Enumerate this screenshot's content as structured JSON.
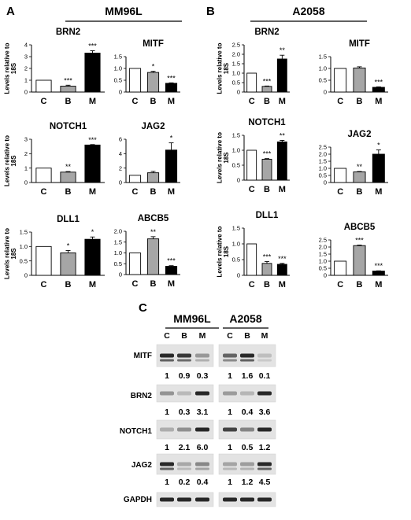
{
  "panels": {
    "A": {
      "letter": "A",
      "title": "MM96L"
    },
    "B": {
      "letter": "B",
      "title": "A2058"
    },
    "C": {
      "letter": "C"
    }
  },
  "y_axis_label": [
    "Levels relative to",
    "18S"
  ],
  "bar_colors": {
    "C": "#ffffff",
    "B": "#a6a6a6",
    "M": "#000000"
  },
  "chart_data": [
    {
      "id": "A-BRN2",
      "panel": "A",
      "type": "bar",
      "title": "BRN2",
      "categories": [
        "C",
        "B",
        "M"
      ],
      "values": [
        1.0,
        0.5,
        3.3
      ],
      "errors": [
        0,
        0.08,
        0.2
      ],
      "stars": [
        "",
        "***",
        "***"
      ],
      "ylim": [
        0,
        4
      ],
      "yticks": [
        0,
        1,
        2,
        3,
        4
      ],
      "ytick_labels": [
        "0",
        "1",
        "2",
        "3",
        "4"
      ]
    },
    {
      "id": "A-MITF",
      "panel": "A",
      "type": "bar",
      "title": "MITF",
      "categories": [
        "C",
        "B",
        "M"
      ],
      "values": [
        1.0,
        0.83,
        0.37
      ],
      "errors": [
        0,
        0.05,
        0.02
      ],
      "stars": [
        "",
        "*",
        "***"
      ],
      "ylim": [
        0,
        1.5
      ],
      "yticks": [
        0,
        0.5,
        1.0,
        1.5
      ],
      "ytick_labels": [
        "0",
        "0.5",
        "1.0",
        "1.5"
      ]
    },
    {
      "id": "A-NOTCH1",
      "panel": "A",
      "type": "bar",
      "title": "NOTCH1",
      "categories": [
        "C",
        "B",
        "M"
      ],
      "values": [
        1.0,
        0.72,
        2.6
      ],
      "errors": [
        0,
        0.04,
        0.03
      ],
      "stars": [
        "",
        "**",
        "***"
      ],
      "ylim": [
        0,
        3
      ],
      "yticks": [
        0,
        1,
        2,
        3
      ],
      "ytick_labels": [
        "0",
        "1",
        "2",
        "3"
      ]
    },
    {
      "id": "A-JAG2",
      "panel": "A",
      "type": "bar",
      "title": "JAG2",
      "categories": [
        "C",
        "B",
        "M"
      ],
      "values": [
        1.0,
        1.35,
        4.5
      ],
      "errors": [
        0,
        0.2,
        1.0
      ],
      "stars": [
        "",
        "",
        "*"
      ],
      "ylim": [
        0,
        6
      ],
      "yticks": [
        0,
        2,
        4,
        6
      ],
      "ytick_labels": [
        "0",
        "2",
        "4",
        "6"
      ]
    },
    {
      "id": "A-DLL1",
      "panel": "A",
      "type": "bar",
      "title": "DLL1",
      "categories": [
        "C",
        "B",
        "M"
      ],
      "values": [
        1.0,
        0.78,
        1.25
      ],
      "errors": [
        0,
        0.08,
        0.08
      ],
      "stars": [
        "",
        "*",
        "*"
      ],
      "ylim": [
        0,
        1.5
      ],
      "yticks": [
        0,
        0.5,
        1.0,
        1.5
      ],
      "ytick_labels": [
        "0",
        "0.5",
        "1.0",
        "1.5"
      ]
    },
    {
      "id": "A-ABCB5",
      "panel": "A",
      "type": "bar",
      "title": "ABCB5",
      "categories": [
        "C",
        "B",
        "M"
      ],
      "values": [
        1.0,
        1.65,
        0.38
      ],
      "errors": [
        0,
        0.1,
        0.03
      ],
      "stars": [
        "",
        "**",
        "***"
      ],
      "ylim": [
        0,
        2.0
      ],
      "yticks": [
        0,
        0.5,
        1.0,
        1.5,
        2.0
      ],
      "ytick_labels": [
        "0",
        "0.5",
        "1.0",
        "1.5",
        "2.0"
      ]
    },
    {
      "id": "B-BRN2",
      "panel": "B",
      "type": "bar",
      "title": "BRN2",
      "categories": [
        "C",
        "B",
        "M"
      ],
      "values": [
        1.0,
        0.3,
        1.75
      ],
      "errors": [
        0,
        0.02,
        0.2
      ],
      "stars": [
        "",
        "***",
        "**"
      ],
      "ylim": [
        0,
        2.5
      ],
      "yticks": [
        0,
        0.5,
        1.0,
        1.5,
        2.0,
        2.5
      ],
      "ytick_labels": [
        "0",
        "0.5",
        "1.0",
        "1.5",
        "2.0",
        "2.5"
      ]
    },
    {
      "id": "B-MITF",
      "panel": "B",
      "type": "bar",
      "title": "MITF",
      "categories": [
        "C",
        "B",
        "M"
      ],
      "values": [
        1.0,
        1.02,
        0.2
      ],
      "errors": [
        0,
        0.05,
        0.02
      ],
      "stars": [
        "",
        "",
        "***"
      ],
      "ylim": [
        0,
        1.5
      ],
      "yticks": [
        0,
        0.5,
        1.0,
        1.5
      ],
      "ytick_labels": [
        "0",
        "0.5",
        "1.0",
        "1.5"
      ]
    },
    {
      "id": "B-NOTCH1",
      "panel": "B",
      "type": "bar",
      "title": "NOTCH1",
      "categories": [
        "C",
        "B",
        "M"
      ],
      "values": [
        1.0,
        0.7,
        1.28
      ],
      "errors": [
        0,
        0.02,
        0.05
      ],
      "stars": [
        "",
        "***",
        "**"
      ],
      "ylim": [
        0,
        1.5
      ],
      "yticks": [
        0,
        0.5,
        1.0,
        1.5
      ],
      "ytick_labels": [
        "0",
        "0.5",
        "1.0",
        "1.5"
      ]
    },
    {
      "id": "B-JAG2",
      "panel": "B",
      "type": "bar",
      "title": "JAG2",
      "categories": [
        "C",
        "B",
        "M"
      ],
      "values": [
        1.0,
        0.75,
        2.0
      ],
      "errors": [
        0,
        0.03,
        0.3
      ],
      "stars": [
        "",
        "**",
        "*"
      ],
      "ylim": [
        0,
        2.5
      ],
      "yticks": [
        0,
        0.5,
        1.0,
        1.5,
        2.0,
        2.5
      ],
      "ytick_labels": [
        "0",
        "0.5",
        "1.0",
        "1.5",
        "2.0",
        "2.5"
      ]
    },
    {
      "id": "B-DLL1",
      "panel": "B",
      "type": "bar",
      "title": "DLL1",
      "categories": [
        "C",
        "B",
        "M"
      ],
      "values": [
        1.0,
        0.38,
        0.35
      ],
      "errors": [
        0,
        0.06,
        0.03
      ],
      "stars": [
        "",
        "***",
        "***"
      ],
      "ylim": [
        0,
        1.5
      ],
      "yticks": [
        0,
        0.5,
        1.0,
        1.5
      ],
      "ytick_labels": [
        "0",
        "0.5",
        "1.0",
        "1.5"
      ]
    },
    {
      "id": "B-ABCB5",
      "panel": "B",
      "type": "bar",
      "title": "ABCB5",
      "categories": [
        "C",
        "B",
        "M"
      ],
      "values": [
        1.0,
        2.1,
        0.3
      ],
      "errors": [
        0,
        0.04,
        0.02
      ],
      "stars": [
        "",
        "***",
        "***"
      ],
      "ylim": [
        0,
        2.5
      ],
      "yticks": [
        0,
        0.5,
        1.0,
        1.5,
        2.0,
        2.5
      ],
      "ytick_labels": [
        "0",
        "0.5",
        "1.0",
        "1.5",
        "2.0",
        "2.5"
      ]
    }
  ],
  "western_blot": {
    "groups": [
      {
        "title": "MM96L",
        "lanes": [
          "C",
          "B",
          "M"
        ]
      },
      {
        "title": "A2058",
        "lanes": [
          "C",
          "B",
          "M"
        ]
      }
    ],
    "rows": [
      {
        "name": "MITF",
        "left_values": [
          "1",
          "0.9",
          "0.3"
        ],
        "right_values": [
          "1",
          "1.6",
          "0.1"
        ],
        "left_intensity": [
          1.0,
          0.9,
          0.3
        ],
        "right_intensity": [
          1.0,
          1.6,
          0.1
        ]
      },
      {
        "name": "BRN2",
        "left_values": [
          "1",
          "0.3",
          "3.1"
        ],
        "right_values": [
          "1",
          "0.4",
          "3.6"
        ],
        "left_intensity": [
          1.0,
          0.3,
          3.1
        ],
        "right_intensity": [
          1.0,
          0.4,
          3.6
        ]
      },
      {
        "name": "NOTCH1",
        "left_values": [
          "1",
          "2.1",
          "6.0"
        ],
        "right_values": [
          "1",
          "0.5",
          "1.2"
        ],
        "left_intensity": [
          1.0,
          2.1,
          6.0
        ],
        "right_intensity": [
          1.0,
          0.5,
          1.2
        ]
      },
      {
        "name": "JAG2",
        "left_values": [
          "1",
          "0.2",
          "0.4"
        ],
        "right_values": [
          "1",
          "1.2",
          "4.5"
        ],
        "left_intensity": [
          1.0,
          0.2,
          0.4
        ],
        "right_intensity": [
          1.0,
          1.2,
          4.5
        ]
      },
      {
        "name": "GAPDH",
        "left_values": [],
        "right_values": [],
        "left_intensity": [
          1.0,
          1.0,
          1.0
        ],
        "right_intensity": [
          1.0,
          1.0,
          1.0
        ]
      }
    ]
  }
}
